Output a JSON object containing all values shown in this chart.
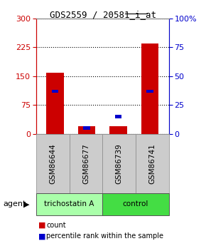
{
  "title_part1": "GDS2559 / 20581",
  "title_part2": "_i_at",
  "samples": [
    "GSM86644",
    "GSM86677",
    "GSM86739",
    "GSM86741"
  ],
  "counts": [
    160,
    20,
    20,
    235
  ],
  "percentiles": [
    37,
    5,
    15,
    37
  ],
  "left_yticks": [
    0,
    75,
    150,
    225,
    300
  ],
  "right_yticks": [
    0,
    25,
    50,
    75,
    100
  ],
  "ylim_left": [
    0,
    300
  ],
  "ylim_right": [
    0,
    100
  ],
  "bar_color": "#cc0000",
  "percentile_color": "#0000cc",
  "groups": [
    {
      "label": "trichostatin A",
      "samples": [
        0,
        1
      ],
      "color": "#aaffaa"
    },
    {
      "label": "control",
      "samples": [
        2,
        3
      ],
      "color": "#44dd44"
    }
  ],
  "agent_label": "agent",
  "legend_count_label": "count",
  "legend_pct_label": "percentile rank within the sample",
  "plot_bg": "#ffffff",
  "left_axis_color": "#cc0000",
  "right_axis_color": "#0000cc",
  "bar_width": 0.55,
  "sample_box_color": "#cccccc",
  "sample_box_border": "#888888"
}
